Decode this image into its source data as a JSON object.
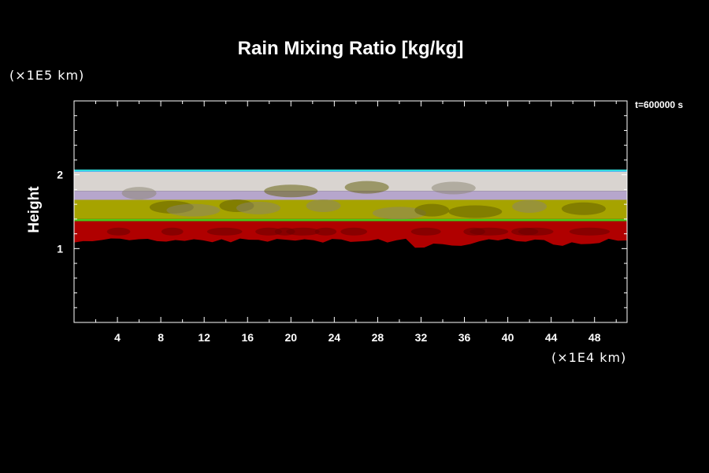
{
  "chart_data": {
    "type": "heatmap",
    "title": "Rain Mixing Ratio [kg/kg]",
    "ylabel": "Height",
    "y_unit_label": "(×1E5 km)",
    "x_unit_label": "(×1E4 km)",
    "time_label": "t=600000 s",
    "xlim": [
      0,
      51
    ],
    "ylim": [
      0,
      3
    ],
    "x_ticks": [
      "4",
      "8",
      "12",
      "16",
      "20",
      "24",
      "28",
      "32",
      "36",
      "40",
      "44",
      "48"
    ],
    "x_tick_values": [
      4,
      8,
      12,
      16,
      20,
      24,
      28,
      32,
      36,
      40,
      44,
      48
    ],
    "y_ticks": [
      "1",
      "2"
    ],
    "y_tick_values": [
      1,
      2
    ],
    "bands": [
      {
        "name": "top",
        "color": "#33e0e0",
        "y_bottom": 2.04,
        "y_top": 2.07
      },
      {
        "name": "white",
        "color": "#d9d4d0",
        "y_bottom": 1.78,
        "y_top": 2.04
      },
      {
        "name": "lavender",
        "color": "#b6a6cc",
        "y_bottom": 1.66,
        "y_top": 1.78
      },
      {
        "name": "olive",
        "color": "#a6a300",
        "y_bottom": 1.4,
        "y_top": 1.66
      },
      {
        "name": "green-edge",
        "color": "#4ac81a",
        "y_bottom": 1.37,
        "y_top": 1.4
      },
      {
        "name": "red",
        "color": "#b00000",
        "y_bottom": 1.18,
        "y_top": 1.37
      }
    ]
  }
}
